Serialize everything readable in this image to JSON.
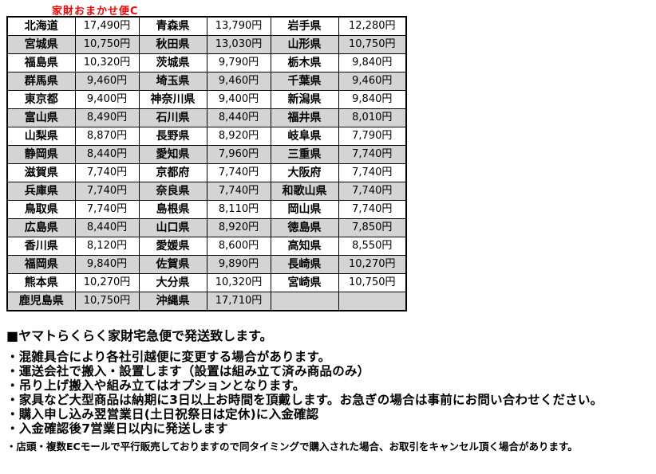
{
  "title": "家財おまかせ便C",
  "colors": {
    "title_red": "#ff0000",
    "row_shaded": "#d4d4d4",
    "border": "#000000",
    "background": "#ffffff"
  },
  "table": {
    "rows": [
      {
        "cells": [
          "北海道",
          "17,490円",
          "青森県",
          "13,790円",
          "岩手県",
          "12,280円"
        ],
        "shaded": false
      },
      {
        "cells": [
          "宮城県",
          "10,750円",
          "秋田県",
          "13,030円",
          "山形県",
          "10,750円"
        ],
        "shaded": true
      },
      {
        "cells": [
          "福島県",
          "10,320円",
          "茨城県",
          "9,790円",
          "栃木県",
          "9,840円"
        ],
        "shaded": false
      },
      {
        "cells": [
          "群馬県",
          "9,460円",
          "埼玉県",
          "9,460円",
          "千葉県",
          "9,460円"
        ],
        "shaded": true
      },
      {
        "cells": [
          "東京都",
          "9,400円",
          "神奈川県",
          "9,400円",
          "新潟県",
          "9,840円"
        ],
        "shaded": false
      },
      {
        "cells": [
          "富山県",
          "8,490円",
          "石川県",
          "8,440円",
          "福井県",
          "8,010円"
        ],
        "shaded": true
      },
      {
        "cells": [
          "山梨県",
          "8,870円",
          "長野県",
          "8,920円",
          "岐阜県",
          "7,790円"
        ],
        "shaded": false
      },
      {
        "cells": [
          "静岡県",
          "8,440円",
          "愛知県",
          "7,960円",
          "三重県",
          "7,740円"
        ],
        "shaded": true
      },
      {
        "cells": [
          "滋賀県",
          "7,740円",
          "京都府",
          "7,740円",
          "大阪府",
          "7,740円"
        ],
        "shaded": false
      },
      {
        "cells": [
          "兵庫県",
          "7,740円",
          "奈良県",
          "7,740円",
          "和歌山県",
          "7,740円"
        ],
        "shaded": true
      },
      {
        "cells": [
          "鳥取県",
          "7,740円",
          "島根県",
          "8,110円",
          "岡山県",
          "7,740円"
        ],
        "shaded": false
      },
      {
        "cells": [
          "広島県",
          "8,440円",
          "山口県",
          "8,920円",
          "徳島県",
          "7,850円"
        ],
        "shaded": true
      },
      {
        "cells": [
          "香川県",
          "8,120円",
          "愛媛県",
          "8,600円",
          "高知県",
          "8,550円"
        ],
        "shaded": false
      },
      {
        "cells": [
          "福岡県",
          "9,840円",
          "佐賀県",
          "9,890円",
          "長崎県",
          "10,270円"
        ],
        "shaded": true
      },
      {
        "cells": [
          "熊本県",
          "10,270円",
          "大分県",
          "10,320円",
          "宮崎県",
          "10,750円"
        ],
        "shaded": false
      },
      {
        "cells": [
          "鹿児島県",
          "10,750円",
          "沖縄県",
          "17,710円",
          "",
          ""
        ],
        "shaded": true
      }
    ]
  },
  "notes": {
    "heading": "■ヤマトらくらく家財宅急便で発送致します。",
    "bullets": [
      "・混雑具合により各社引越便に変更する場合があります。",
      "・運送会社で搬入・設置します（設置は組み立て済み商品のみ）",
      "・吊り上げ搬入や組み立てはオプションとなります。",
      "・家具など大型商品は納期に3日以上お時間を頂戴します。お急ぎの場合は事前にお問い合わせください。",
      "・購入申し込み翌営業日(土日祝祭日は定休)に入金確認",
      "・入金確認後7営業日以内に発送します"
    ],
    "small_note": "・店頭・複数ECモールで平行販売しておりますので同タイミングで購入された場合、お取引をキャンセル頂く場合があります。"
  }
}
